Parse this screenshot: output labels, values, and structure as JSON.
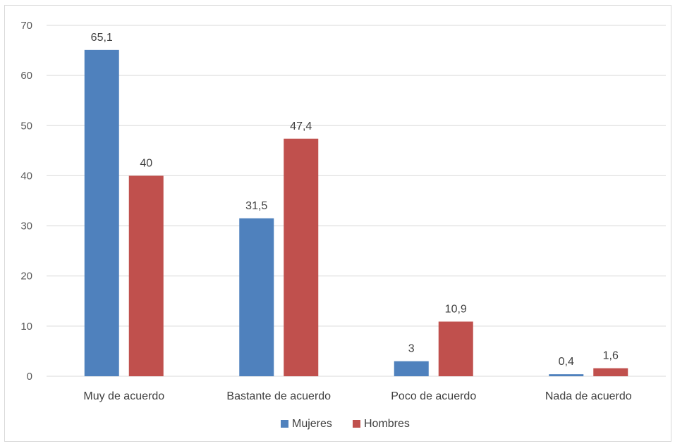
{
  "chart_data": {
    "type": "bar",
    "categories": [
      "Muy de acuerdo",
      "Bastante de acuerdo",
      "Poco de acuerdo",
      "Nada de acuerdo"
    ],
    "series": [
      {
        "name": "Mujeres",
        "color": "#4f81bd",
        "values": [
          65.1,
          31.5,
          3,
          0.4
        ],
        "labels": [
          "65,1",
          "31,5",
          "3",
          "0,4"
        ]
      },
      {
        "name": "Hombres",
        "color": "#c0504d",
        "values": [
          40,
          47.4,
          10.9,
          1.6
        ],
        "labels": [
          "40",
          "47,4",
          "10,9",
          "1,6"
        ]
      }
    ],
    "title": "",
    "xlabel": "",
    "ylabel": "",
    "ylim": [
      0,
      70
    ],
    "yticks": [
      0,
      10,
      20,
      30,
      40,
      50,
      60,
      70
    ],
    "grid": true,
    "gridColor": "#d9d9d9",
    "legend": "bottom-center"
  }
}
